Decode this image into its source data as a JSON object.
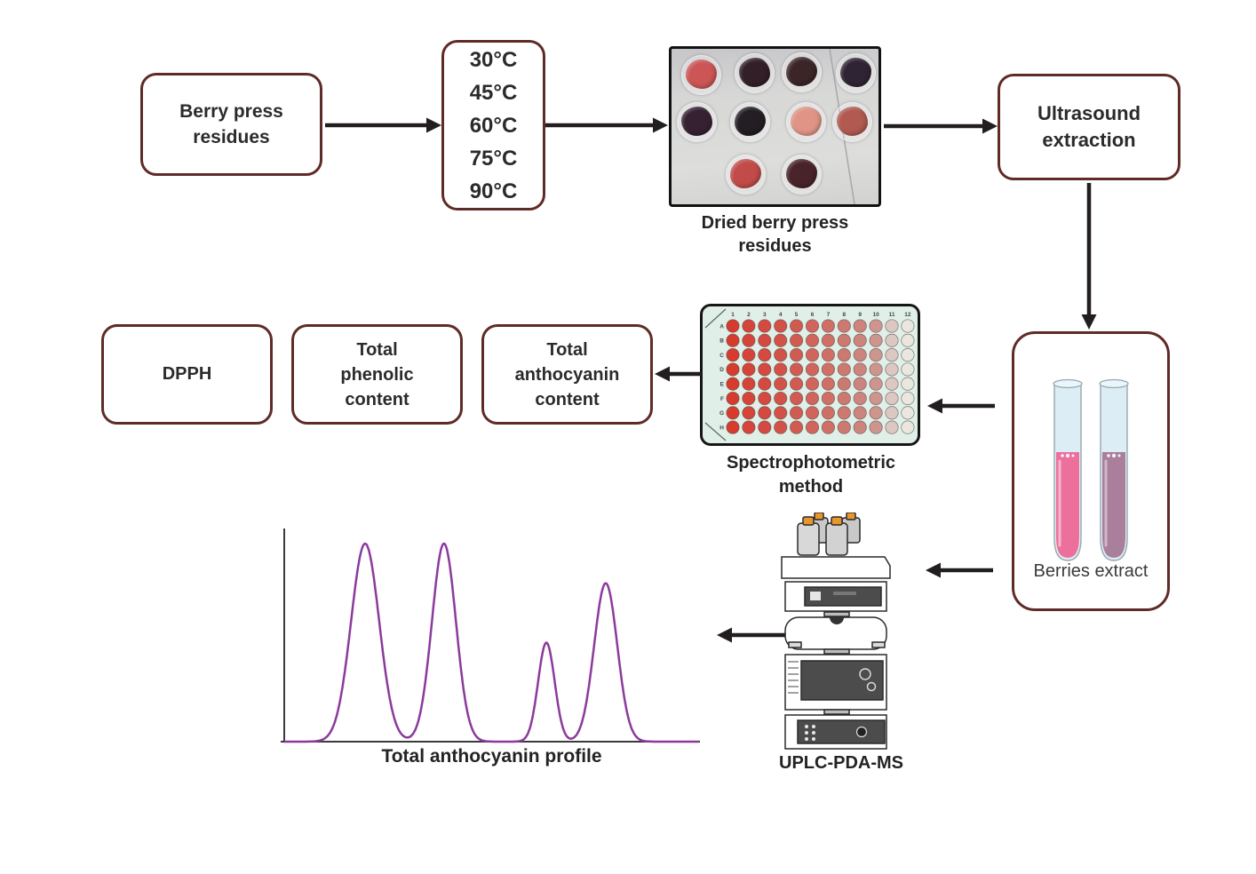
{
  "diagram": {
    "background": "#ffffff",
    "node_border_color": "#5f2b27",
    "arrow_color": "#221e1f",
    "nodes": {
      "berry_press": {
        "label": "Berry press residues"
      },
      "temperatures": {
        "label": "30°C\n45°C\n60°C\n75°C\n90°C"
      },
      "dried_photo": {
        "caption": "Dried berry press residues",
        "dish_colors": [
          "#cb5655",
          "#321f28",
          "#3b2527",
          "#2f2433",
          "#352131",
          "#231d24",
          "#df9486",
          "#b05a51",
          "#c14b49",
          "#49232a"
        ]
      },
      "ultrasound": {
        "label": "Ultrasound extraction"
      },
      "berries_extract": {
        "label": "Berries extract",
        "tube_liquid_colors": [
          "#ed6f9c",
          "#a97f9c"
        ],
        "tube_glass_color": "#dcedf5",
        "tube_outline_color": "#98a8ad"
      },
      "microplate": {
        "caption": "Spectrophotometric method",
        "plate_color": "#e0f0e9",
        "row_labels": [
          "A",
          "B",
          "C",
          "D",
          "E",
          "F",
          "G",
          "H"
        ],
        "column_labels": [
          "1",
          "2",
          "3",
          "4",
          "5",
          "6",
          "7",
          "8",
          "9",
          "10",
          "11",
          "12"
        ],
        "column_well_colors": [
          "#d63b2e",
          "#d5443a",
          "#d44940",
          "#d35247",
          "#d25b51",
          "#d1655b",
          "#d06f65",
          "#ce7970",
          "#cd847c",
          "#ce958e",
          "#dcc7c2",
          "#eae7e1"
        ]
      },
      "assays": [
        {
          "label": "DPPH"
        },
        {
          "label": "Total phenolic content"
        },
        {
          "label": "Total anthocyanin content"
        }
      ],
      "uplc": {
        "caption": "UPLC-PDA-MS",
        "bottle_cap_color": "#e8962e"
      }
    },
    "edges": [
      {
        "from": "berry-press-residues",
        "to": "temperatures"
      },
      {
        "from": "temperatures",
        "to": "dried-berry-press-residues-photo"
      },
      {
        "from": "dried-berry-press-residues-photo",
        "to": "ultrasound-extraction"
      },
      {
        "from": "ultrasound-extraction",
        "to": "berries-extract"
      },
      {
        "from": "berries-extract",
        "to": "spectrophotometric-method"
      },
      {
        "from": "spectrophotometric-method",
        "to": "total-anthocyanin-content"
      },
      {
        "from": "berries-extract",
        "to": "uplc-pda-ms"
      },
      {
        "from": "uplc-pda-ms",
        "to": "total-anthocyanin-profile-chart"
      }
    ]
  },
  "chart_data": {
    "type": "line",
    "title": "Total anthocyanin profile",
    "xlabel": "",
    "ylabel": "",
    "grid": false,
    "line_color": "#8b3a9c",
    "axis_color": "#3a3a3a",
    "x_range": [
      0,
      1
    ],
    "y_range": [
      0,
      1
    ],
    "peaks": [
      {
        "x": 0.195,
        "height": 1.0,
        "sigma": 0.034
      },
      {
        "x": 0.385,
        "height": 1.0,
        "sigma": 0.029
      },
      {
        "x": 0.632,
        "height": 0.5,
        "sigma": 0.02
      },
      {
        "x": 0.775,
        "height": 0.8,
        "sigma": 0.028
      }
    ]
  }
}
